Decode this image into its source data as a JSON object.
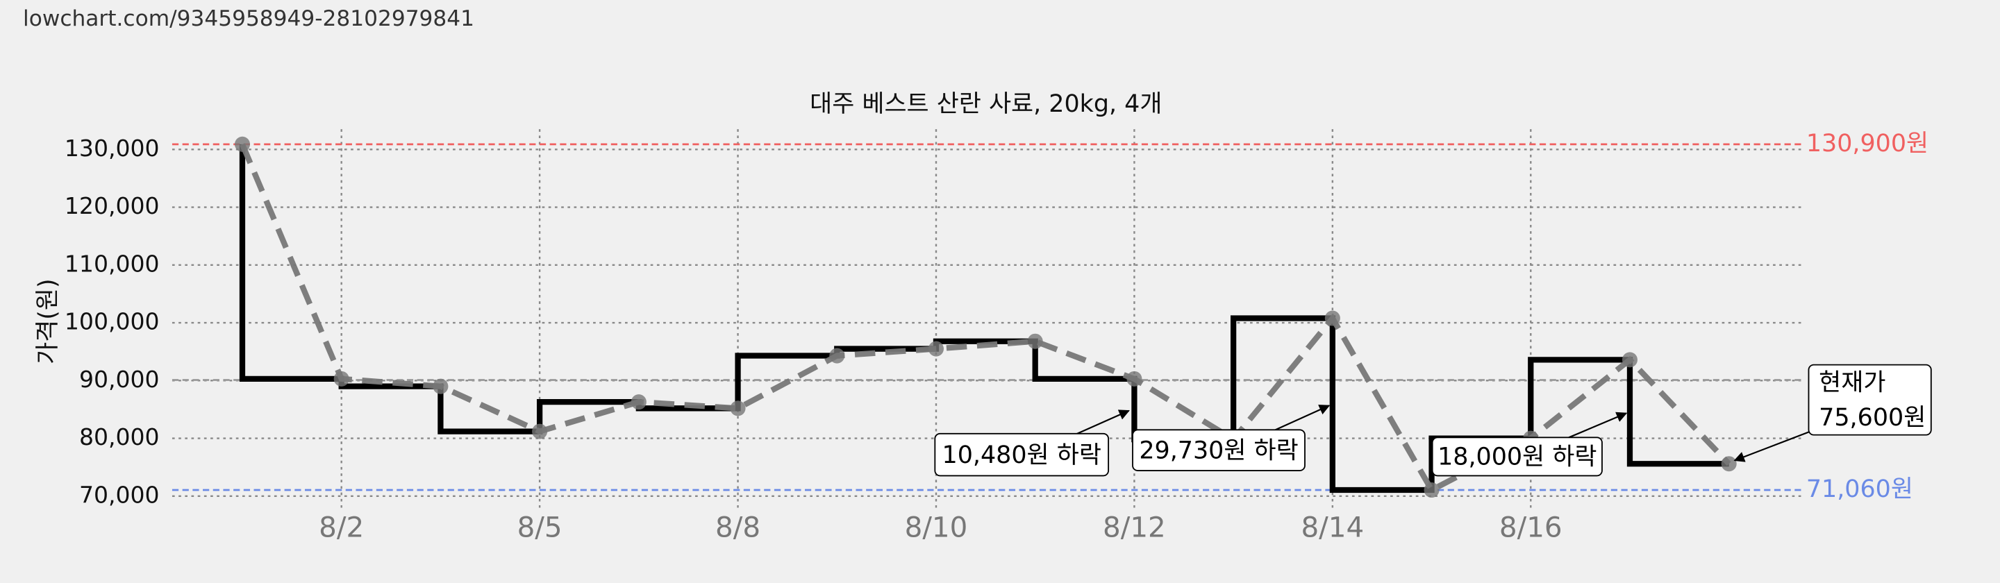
{
  "header": {
    "url": "lowchart.com/9345958949-28102979841"
  },
  "chart_data": {
    "type": "line",
    "title": "대주 베스트 산란 사료, 20kg, 4개",
    "y_label": "가격(원)",
    "categories": [
      null,
      "8/2",
      null,
      "8/5",
      null,
      "8/8",
      null,
      "8/10",
      null,
      "8/12",
      null,
      "8/14",
      null,
      "8/16",
      null,
      null
    ],
    "series": [
      {
        "color": "#000000",
        "trend_color": "#777777",
        "values": [
          130900,
          90300,
          89000,
          81200,
          86300,
          85200,
          94300,
          95500,
          96800,
          90300,
          79820,
          100790,
          71060,
          80000,
          93600,
          75600
        ]
      }
    ],
    "ylim": [
      68000,
      133500
    ],
    "yticks": [
      {
        "value": 70000,
        "label": "70,000"
      },
      {
        "value": 80000,
        "label": "80,000"
      },
      {
        "value": 90000,
        "label": "90,000"
      },
      {
        "value": 100000,
        "label": "100,000"
      },
      {
        "value": 110000,
        "label": "110,000"
      },
      {
        "value": 120000,
        "label": "120,000"
      },
      {
        "value": 130000,
        "label": "130,000"
      }
    ],
    "grid": true,
    "reference_lines": [
      {
        "value": 130900,
        "label": "130,900원",
        "color": "#f06060"
      },
      {
        "value": 71060,
        "label": "71,060원",
        "color": "#6a8ae6"
      },
      {
        "value": 90100,
        "color": "#999999"
      }
    ],
    "annotations": [
      {
        "lines": [
          "10,480원 하락"
        ]
      },
      {
        "lines": [
          "29,730원 하락"
        ]
      },
      {
        "lines": [
          "18,000원 하락"
        ]
      },
      {
        "lines": [
          "현재가",
          "75,600원"
        ]
      }
    ]
  }
}
